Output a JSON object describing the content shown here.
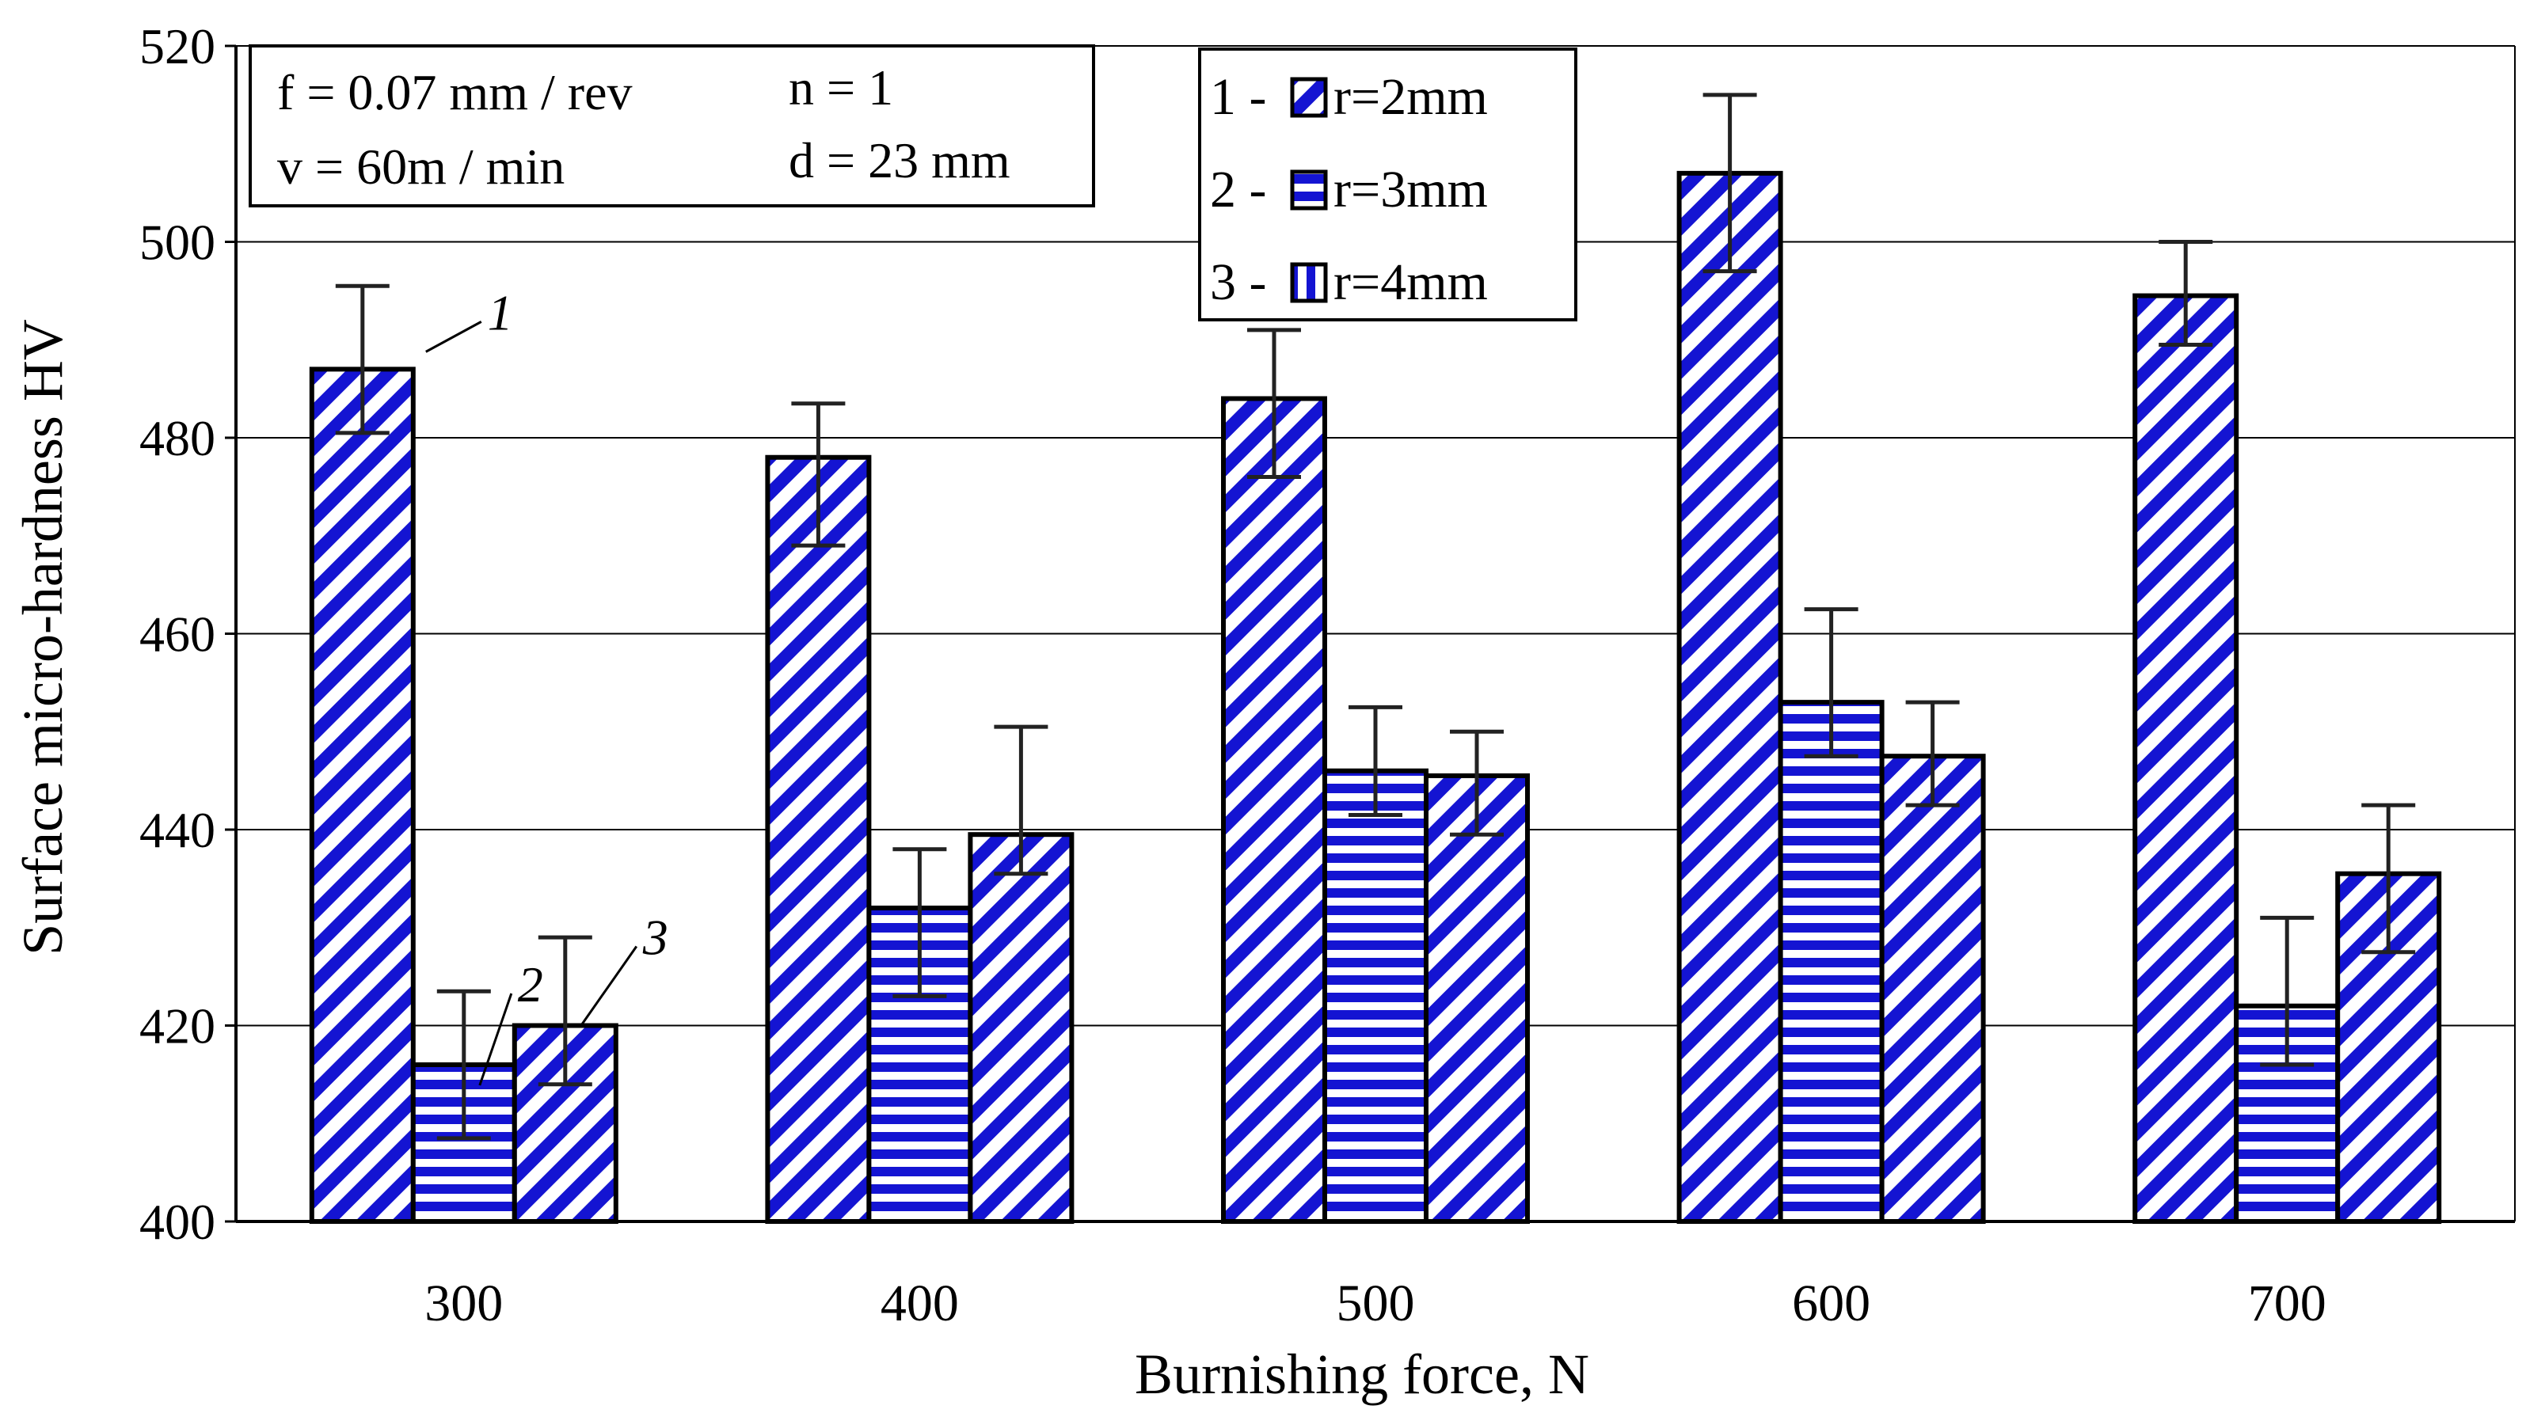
{
  "chart_data": {
    "type": "bar",
    "xlabel": "Burnishing force, N",
    "ylabel": "Surface micro-hardness HV",
    "ylim": [
      400,
      520
    ],
    "yticks": [
      400,
      420,
      440,
      460,
      480,
      500,
      520
    ],
    "categories": [
      "300",
      "400",
      "500",
      "600",
      "700"
    ],
    "series": [
      {
        "name": "r=2mm",
        "legend_label": "1 - ",
        "pattern": "diagonal",
        "values": [
          487,
          478,
          484,
          507,
          494.5
        ],
        "err_low": [
          480.5,
          469,
          476,
          497,
          489.5
        ],
        "err_high": [
          495.5,
          483.5,
          491,
          515,
          500
        ]
      },
      {
        "name": "r=3mm",
        "legend_label": "2 - ",
        "pattern": "horizontal",
        "values": [
          416,
          432,
          446,
          453,
          422
        ],
        "err_low": [
          408.5,
          423,
          441.5,
          447.5,
          416
        ],
        "err_high": [
          423.5,
          438,
          452.5,
          462.5,
          431
        ]
      },
      {
        "name": "r=4mm",
        "legend_label": "3 - ",
        "pattern": "vertical",
        "values": [
          420,
          439.5,
          445.5,
          447.5,
          435.5
        ],
        "err_low": [
          414,
          435.5,
          439.5,
          442.5,
          427.5
        ],
        "err_high": [
          429,
          450.5,
          450,
          453,
          442.5
        ]
      }
    ],
    "bar_labels": [
      {
        "text": "1",
        "series": 0,
        "category": 0
      },
      {
        "text": "2",
        "series": 1,
        "category": 0
      },
      {
        "text": "3",
        "series": 2,
        "category": 0
      }
    ],
    "params": {
      "f": "f = 0.07 mm / rev",
      "v": "v = 60m / min",
      "n": "n = 1",
      "d": "d = 23 mm"
    },
    "colors": {
      "bar_fill": "#1414d2",
      "bar_bg": "#ffffff",
      "outline": "#000000",
      "grid": "#000000"
    }
  }
}
